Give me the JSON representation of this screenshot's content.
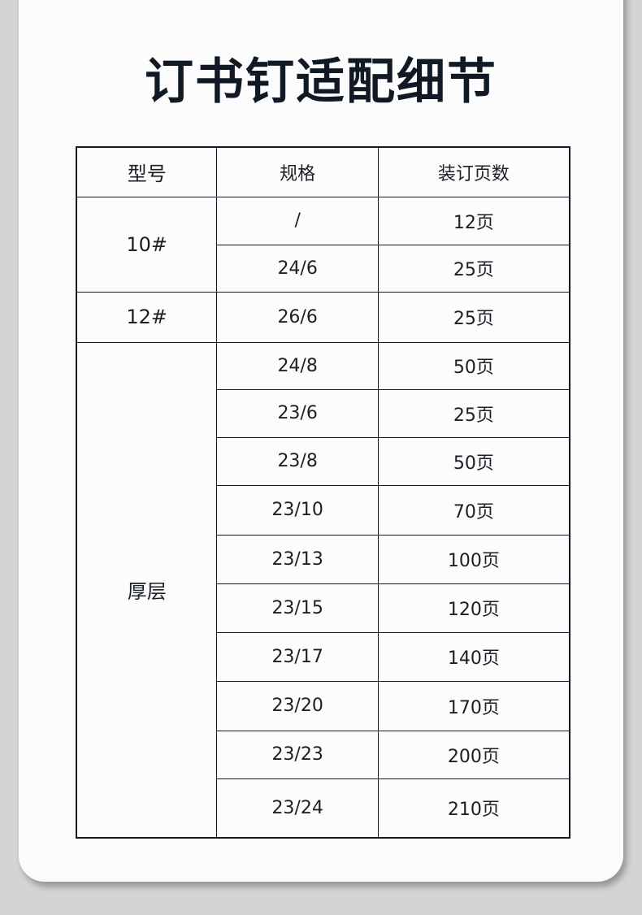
{
  "title": "订书钉适配细节",
  "table": {
    "headers": [
      "型号",
      "规格",
      "装订页数"
    ],
    "groups": [
      {
        "model": "10#",
        "rows": [
          {
            "spec": "/",
            "pages": "12页"
          },
          {
            "spec": "24/6",
            "pages": "25页"
          }
        ]
      },
      {
        "model": "12#",
        "rows": [
          {
            "spec": "26/6",
            "pages": "25页"
          }
        ]
      },
      {
        "model": "厚层",
        "rows": [
          {
            "spec": "24/8",
            "pages": "50页"
          },
          {
            "spec": "23/6",
            "pages": "25页"
          },
          {
            "spec": "23/8",
            "pages": "50页"
          },
          {
            "spec": "23/10",
            "pages": "70页"
          },
          {
            "spec": "23/13",
            "pages": "100页"
          },
          {
            "spec": "23/15",
            "pages": "120页"
          },
          {
            "spec": "23/17",
            "pages": "140页"
          },
          {
            "spec": "23/20",
            "pages": "170页"
          },
          {
            "spec": "23/23",
            "pages": "200页"
          },
          {
            "spec": "23/24",
            "pages": "210页"
          }
        ]
      }
    ]
  }
}
